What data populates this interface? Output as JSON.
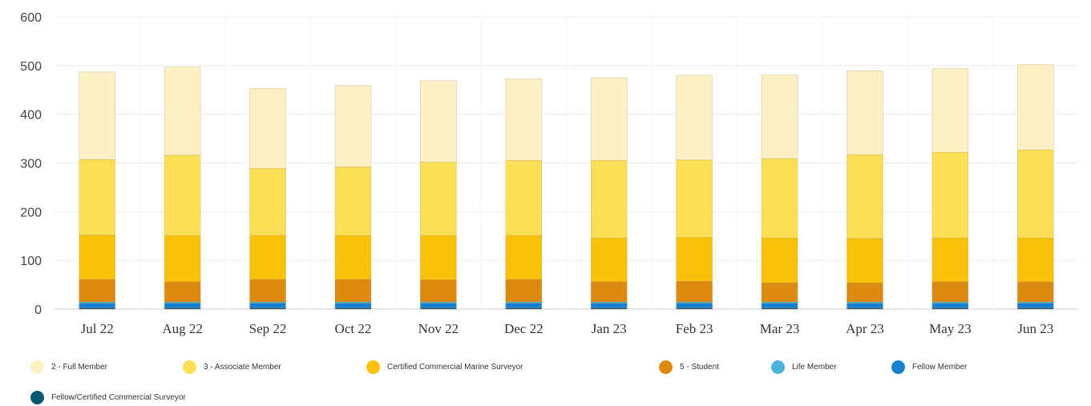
{
  "chart_data": {
    "type": "bar",
    "stacked": true,
    "categories": [
      "Jul 22",
      "Aug 22",
      "Sep 22",
      "Oct 22",
      "Nov 22",
      "Dec 22",
      "Jan 23",
      "Feb 23",
      "Mar 23",
      "Apr 23",
      "May 23",
      "Jun 23"
    ],
    "ylim": [
      0,
      600
    ],
    "yticks": [
      0,
      100,
      200,
      300,
      400,
      500,
      600
    ],
    "grid": true,
    "legend_position": "bottom",
    "series": [
      {
        "name": "Fellow/Certified Commercial Surveyor",
        "color": "#0b5872",
        "values": [
          2,
          2,
          2,
          2,
          2,
          2,
          2,
          2,
          2,
          2,
          2,
          2
        ]
      },
      {
        "name": "Fellow Member",
        "color": "#1a82cc",
        "values": [
          10,
          10,
          10,
          10,
          10,
          10,
          10,
          10,
          10,
          10,
          10,
          10
        ]
      },
      {
        "name": "Life Member",
        "color": "#4ab4d9",
        "values": [
          3,
          3,
          3,
          3,
          3,
          3,
          3,
          3,
          3,
          3,
          3,
          3
        ]
      },
      {
        "name": "5 - Student",
        "color": "#dd8a10",
        "values": [
          46,
          41,
          46,
          46,
          45,
          46,
          41,
          42,
          39,
          39,
          41,
          41
        ]
      },
      {
        "name": "Certified Commercial Marine Surveyor",
        "color": "#f9c20a",
        "values": [
          91,
          95,
          90,
          90,
          91,
          90,
          90,
          90,
          92,
          91,
          90,
          90
        ]
      },
      {
        "name": "3 - Associate Member",
        "color": "#fbe057",
        "values": [
          155,
          165,
          138,
          141,
          151,
          154,
          159,
          159,
          163,
          172,
          176,
          181
        ]
      },
      {
        "name": "2 - Full Member",
        "color": "#fcf0c5",
        "values": [
          180,
          181,
          164,
          167,
          167,
          168,
          170,
          174,
          172,
          172,
          172,
          175
        ]
      }
    ],
    "legend": [
      "2 - Full Member",
      "3 - Associate Member",
      "Certified Commercial Marine Surveyor",
      "5 - Student",
      "Life Member",
      "Fellow Member",
      "Fellow/Certified Commercial Surveyor"
    ]
  }
}
